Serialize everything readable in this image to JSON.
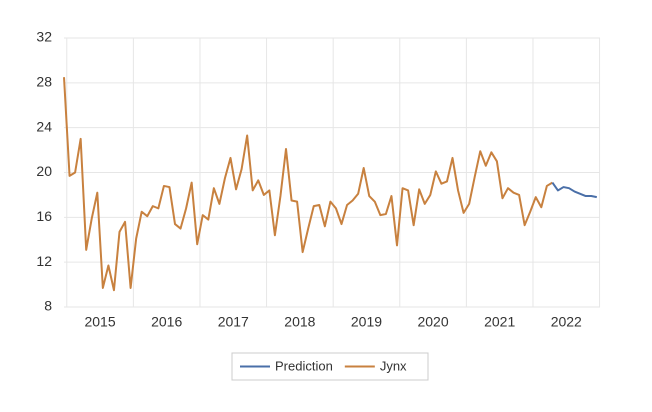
{
  "chart_data": {
    "type": "line",
    "categories": [
      null,
      null,
      null,
      null,
      null,
      null,
      "2015",
      null,
      null,
      null,
      null,
      null,
      null,
      null,
      null,
      null,
      null,
      null,
      "2016",
      null,
      null,
      null,
      null,
      null,
      null,
      null,
      null,
      null,
      null,
      null,
      "2017",
      null,
      null,
      null,
      null,
      null,
      null,
      null,
      null,
      null,
      null,
      null,
      "2018",
      null,
      null,
      null,
      null,
      null,
      null,
      null,
      null,
      null,
      null,
      null,
      "2019",
      null,
      null,
      null,
      null,
      null,
      null,
      null,
      null,
      null,
      null,
      null,
      "2020",
      null,
      null,
      null,
      null,
      null,
      null,
      null,
      null,
      null,
      null,
      null,
      "2021",
      null,
      null,
      null,
      null,
      null,
      null,
      null,
      null,
      null,
      null,
      null,
      "2022",
      null,
      null,
      null,
      null,
      null,
      null
    ],
    "series": [
      {
        "name": "Prediction",
        "color": "#4a6fa8",
        "values": [
          null,
          null,
          null,
          null,
          null,
          null,
          null,
          null,
          null,
          null,
          null,
          null,
          null,
          null,
          null,
          null,
          null,
          null,
          null,
          null,
          null,
          null,
          null,
          null,
          null,
          null,
          null,
          null,
          null,
          null,
          null,
          null,
          null,
          null,
          null,
          null,
          null,
          null,
          null,
          null,
          null,
          null,
          null,
          null,
          null,
          null,
          null,
          null,
          null,
          null,
          null,
          null,
          null,
          null,
          null,
          null,
          null,
          null,
          null,
          null,
          null,
          null,
          null,
          null,
          null,
          null,
          null,
          null,
          null,
          null,
          null,
          null,
          null,
          null,
          null,
          null,
          null,
          null,
          null,
          null,
          null,
          null,
          null,
          null,
          null,
          null,
          null,
          null,
          19.1,
          18.4,
          18.7,
          18.6,
          18.3,
          18.1,
          17.9,
          17.9,
          17.8
        ]
      },
      {
        "name": "Jynx",
        "color": "#c8813f",
        "values": [
          28.5,
          19.7,
          20.0,
          23.0,
          13.1,
          15.9,
          18.2,
          9.7,
          11.7,
          9.5,
          14.7,
          15.6,
          9.7,
          14.1,
          16.5,
          16.1,
          17.0,
          16.8,
          18.8,
          18.7,
          15.4,
          15.0,
          16.8,
          19.1,
          13.6,
          16.2,
          15.8,
          18.6,
          17.2,
          19.5,
          21.3,
          18.5,
          20.3,
          23.3,
          18.4,
          19.3,
          18.0,
          18.4,
          14.4,
          17.9,
          22.1,
          17.5,
          17.4,
          12.9,
          15.0,
          17.0,
          17.1,
          15.2,
          17.4,
          16.8,
          15.4,
          17.1,
          17.5,
          18.1,
          20.4,
          17.9,
          17.4,
          16.2,
          16.3,
          17.9,
          13.5,
          18.6,
          18.4,
          15.3,
          18.5,
          17.2,
          18.0,
          20.1,
          19.0,
          19.2,
          21.3,
          18.4,
          16.4,
          17.2,
          19.6,
          21.9,
          20.6,
          21.8,
          21.0,
          17.7,
          18.6,
          18.2,
          18.0,
          15.3,
          16.5,
          17.8,
          16.9,
          18.8,
          19.1,
          null,
          null,
          null,
          null,
          null,
          null,
          null,
          null
        ]
      }
    ],
    "ylim": [
      8,
      32
    ],
    "yticks": [
      8,
      12,
      16,
      20,
      24,
      28,
      32
    ],
    "grid": true,
    "legend": "bottom"
  }
}
